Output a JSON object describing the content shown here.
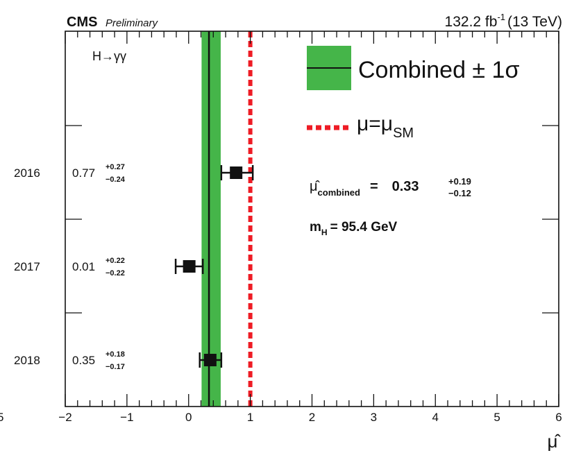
{
  "chart_data": {
    "type": "scatter",
    "header": {
      "experiment": "CMS",
      "status": "Preliminary",
      "lumi_value": "132.2 fb",
      "lumi_exp": "-1",
      "energy": "(13 TeV)"
    },
    "channel": "H→γγ",
    "xlabel": "μ̂",
    "xlim": [
      -2,
      6
    ],
    "x_ticks": [
      "−2",
      "−1",
      "0",
      "1",
      "2",
      "3",
      "4",
      "5",
      "6"
    ],
    "y_edge_label": "5",
    "categories": [
      "2016",
      "2017",
      "2018"
    ],
    "points": [
      {
        "label": "2016",
        "value_text": "0.77",
        "up_text": "+0.27",
        "down_text": "−0.24",
        "mu": 0.77,
        "err_up": 0.27,
        "err_down": 0.24
      },
      {
        "label": "2017",
        "value_text": "0.01",
        "up_text": "+0.22",
        "down_text": "−0.22",
        "mu": 0.01,
        "err_up": 0.22,
        "err_down": 0.22
      },
      {
        "label": "2018",
        "value_text": "0.35",
        "up_text": "+0.18",
        "down_text": "−0.17",
        "mu": 0.35,
        "err_up": 0.18,
        "err_down": 0.17
      }
    ],
    "combined": {
      "mu": 0.33,
      "err_up": 0.19,
      "err_down": 0.12,
      "label_mu": "μ̂",
      "label_sub": "combined",
      "label_eq": "=",
      "value_text": "0.33",
      "up_text": "+0.19",
      "down_text": "−0.12"
    },
    "sm_value": 1,
    "mass": {
      "symbol": "m",
      "sub": "H",
      "text": "= 95.4 GeV"
    },
    "legend": {
      "placement": "top-right",
      "combined_label": "Combined ± 1σ",
      "sm_mu": "μ=μ",
      "sm_sub": "SM"
    },
    "colors": {
      "band": "#45b549",
      "sm_line": "#ee1c25",
      "marker": "#111111"
    }
  }
}
